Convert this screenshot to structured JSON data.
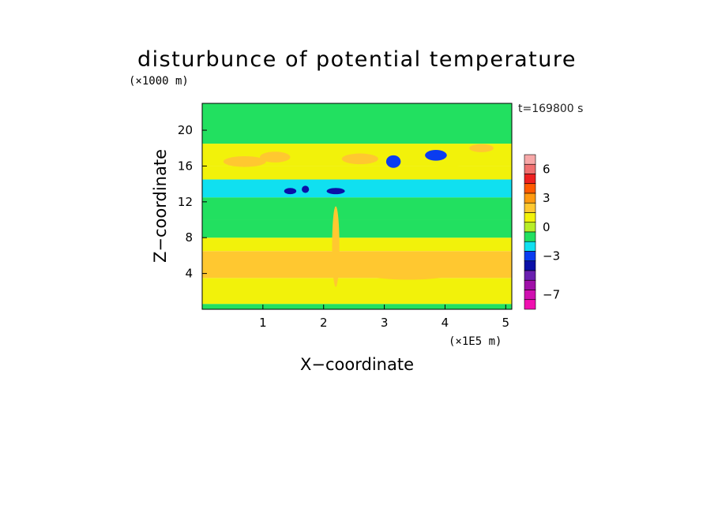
{
  "chart_data": {
    "type": "heatmap",
    "title": "disturbunce of potential temperature",
    "y_unit_label": "(×1000 m)",
    "x_unit_label": "(×1E5 m)",
    "xlabel": "X−coordinate",
    "ylabel": "Z−coordinate",
    "time_label": "t=169800 s",
    "x_range": [
      0,
      5.1
    ],
    "y_range": [
      0,
      23
    ],
    "x_ticks": [
      1,
      2,
      3,
      4,
      5
    ],
    "x_tick_labels": [
      "1",
      "2",
      "3",
      "4",
      "5"
    ],
    "y_ticks": [
      4,
      8,
      12,
      16,
      20
    ],
    "y_tick_labels": [
      "4",
      "8",
      "12",
      "16",
      "20"
    ],
    "colorbar": {
      "levels": [
        {
          "value": 7,
          "color": "#f7a8a8"
        },
        {
          "value": 6,
          "color": "#f07070"
        },
        {
          "value": 5,
          "color": "#ee2020"
        },
        {
          "value": 4,
          "color": "#ff5a00"
        },
        {
          "value": 3,
          "color": "#ff9a10"
        },
        {
          "value": 2,
          "color": "#ffc830"
        },
        {
          "value": 1,
          "color": "#f2f20a"
        },
        {
          "value": 0,
          "color": "#b8ee28"
        },
        {
          "value": -1,
          "color": "#22e060"
        },
        {
          "value": -2,
          "color": "#10e0f0"
        },
        {
          "value": -3,
          "color": "#0a3cf0"
        },
        {
          "value": -4,
          "color": "#0a10a8"
        },
        {
          "value": -5,
          "color": "#6a20b0"
        },
        {
          "value": -6,
          "color": "#a010a8"
        },
        {
          "value": -7,
          "color": "#d010b0"
        },
        {
          "value": -8,
          "color": "#f010b0"
        }
      ],
      "tick_labels": [
        {
          "value": 6,
          "text": "6"
        },
        {
          "value": 3,
          "text": "3"
        },
        {
          "value": 0,
          "text": "0"
        },
        {
          "value": -3,
          "text": "−3"
        },
        {
          "value": -7,
          "text": "−7"
        }
      ]
    },
    "bands": [
      {
        "z": [
          0,
          0.6
        ],
        "value": -1
      },
      {
        "z": [
          0.6,
          3.5
        ],
        "value": 1
      },
      {
        "z": [
          3.5,
          6.5
        ],
        "value": 2
      },
      {
        "z": [
          6.5,
          8.0
        ],
        "value": 1
      },
      {
        "z": [
          8.0,
          10.0
        ],
        "value": -1
      },
      {
        "z": [
          10.0,
          12.5
        ],
        "value": -1
      },
      {
        "z": [
          12.5,
          14.5
        ],
        "value": -2
      },
      {
        "z": [
          14.5,
          16.0
        ],
        "value": 1
      },
      {
        "z": [
          16.0,
          18.5
        ],
        "value": 1
      },
      {
        "z": [
          18.5,
          23.0
        ],
        "value": -1
      }
    ],
    "blobs": [
      {
        "x": 1.45,
        "z": 13.2,
        "rx": 0.1,
        "rz": 0.35,
        "value": -4
      },
      {
        "x": 1.7,
        "z": 13.4,
        "rx": 0.06,
        "rz": 0.4,
        "value": -4
      },
      {
        "x": 2.2,
        "z": 13.2,
        "rx": 0.15,
        "rz": 0.35,
        "value": -4
      },
      {
        "x": 3.15,
        "z": 16.5,
        "rx": 0.12,
        "rz": 0.7,
        "value": -3
      },
      {
        "x": 3.85,
        "z": 17.2,
        "rx": 0.18,
        "rz": 0.6,
        "value": -3
      },
      {
        "x": 4.05,
        "z": 15.5,
        "rx": 0.35,
        "rz": 0.6,
        "value": 1
      },
      {
        "x": 4.6,
        "z": 18.0,
        "rx": 0.2,
        "rz": 0.45,
        "value": 2
      },
      {
        "x": 0.7,
        "z": 16.5,
        "rx": 0.35,
        "rz": 0.6,
        "value": 2
      },
      {
        "x": 1.2,
        "z": 17.0,
        "rx": 0.25,
        "rz": 0.6,
        "value": 2
      },
      {
        "x": 2.6,
        "z": 16.8,
        "rx": 0.3,
        "rz": 0.6,
        "value": 2
      },
      {
        "x": 3.4,
        "z": 4.5,
        "rx": 0.9,
        "rz": 1.2,
        "value": 2
      },
      {
        "x": 0.85,
        "z": 19.2,
        "rx": 0.15,
        "rz": 0.3,
        "value": -1
      },
      {
        "x": 2.2,
        "z": 7.0,
        "rx": 0.06,
        "rz": 4.5,
        "value": 2
      }
    ]
  }
}
